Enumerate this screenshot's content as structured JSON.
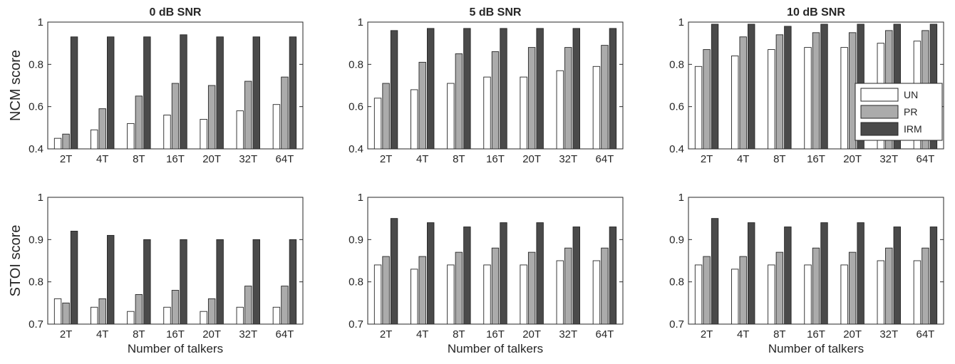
{
  "legend": {
    "entries": [
      {
        "label": "UN",
        "color": "#ffffff"
      },
      {
        "label": "PR",
        "color": "#ababab"
      },
      {
        "label": "IRM",
        "color": "#4a4a4a"
      }
    ],
    "placement": "right of top-right panel"
  },
  "chart_data": [
    {
      "type": "bar",
      "row": 0,
      "col": 0,
      "title": "0 dB SNR",
      "ylabel": "NCM score",
      "xlabel": "",
      "categories": [
        "2T",
        "4T",
        "8T",
        "16T",
        "20T",
        "32T",
        "64T"
      ],
      "ylim": [
        0.4,
        1.0
      ],
      "yticks": [
        "0.4",
        "0.6",
        "0.8",
        "1"
      ],
      "series": [
        {
          "name": "UN",
          "values": [
            0.45,
            0.49,
            0.52,
            0.56,
            0.54,
            0.58,
            0.61
          ]
        },
        {
          "name": "PR",
          "values": [
            0.47,
            0.59,
            0.65,
            0.71,
            0.7,
            0.72,
            0.74
          ]
        },
        {
          "name": "IRM",
          "values": [
            0.93,
            0.93,
            0.93,
            0.94,
            0.93,
            0.93,
            0.93
          ]
        }
      ]
    },
    {
      "type": "bar",
      "row": 0,
      "col": 1,
      "title": "5 dB SNR",
      "ylabel": "",
      "xlabel": "",
      "categories": [
        "2T",
        "4T",
        "8T",
        "16T",
        "20T",
        "32T",
        "64T"
      ],
      "ylim": [
        0.4,
        1.0
      ],
      "yticks": [
        "0.4",
        "0.6",
        "0.8",
        "1"
      ],
      "series": [
        {
          "name": "UN",
          "values": [
            0.64,
            0.68,
            0.71,
            0.74,
            0.74,
            0.77,
            0.79
          ]
        },
        {
          "name": "PR",
          "values": [
            0.71,
            0.81,
            0.85,
            0.86,
            0.88,
            0.88,
            0.89
          ]
        },
        {
          "name": "IRM",
          "values": [
            0.96,
            0.97,
            0.97,
            0.97,
            0.97,
            0.97,
            0.97
          ]
        }
      ]
    },
    {
      "type": "bar",
      "row": 0,
      "col": 2,
      "title": "10 dB SNR",
      "ylabel": "",
      "xlabel": "",
      "categories": [
        "2T",
        "4T",
        "8T",
        "16T",
        "20T",
        "32T",
        "64T"
      ],
      "ylim": [
        0.4,
        1.0
      ],
      "yticks": [
        "0.4",
        "0.6",
        "0.8",
        "1"
      ],
      "series": [
        {
          "name": "UN",
          "values": [
            0.79,
            0.84,
            0.87,
            0.88,
            0.88,
            0.9,
            0.91
          ]
        },
        {
          "name": "PR",
          "values": [
            0.87,
            0.93,
            0.94,
            0.95,
            0.95,
            0.96,
            0.96
          ]
        },
        {
          "name": "IRM",
          "values": [
            0.99,
            0.99,
            0.98,
            0.99,
            0.99,
            0.99,
            0.99
          ]
        }
      ]
    },
    {
      "type": "bar",
      "row": 1,
      "col": 0,
      "title": "",
      "ylabel": "STOI score",
      "xlabel": "Number of talkers",
      "categories": [
        "2T",
        "4T",
        "8T",
        "16T",
        "20T",
        "32T",
        "64T"
      ],
      "ylim": [
        0.7,
        1.0
      ],
      "yticks": [
        "0.7",
        "0.8",
        "0.9",
        "1"
      ],
      "series": [
        {
          "name": "UN",
          "values": [
            0.76,
            0.74,
            0.73,
            0.74,
            0.73,
            0.74,
            0.74
          ]
        },
        {
          "name": "PR",
          "values": [
            0.75,
            0.76,
            0.77,
            0.78,
            0.76,
            0.79,
            0.79
          ]
        },
        {
          "name": "IRM",
          "values": [
            0.92,
            0.91,
            0.9,
            0.9,
            0.9,
            0.9,
            0.9
          ]
        }
      ]
    },
    {
      "type": "bar",
      "row": 1,
      "col": 1,
      "title": "",
      "ylabel": "",
      "xlabel": "Number of talkers",
      "categories": [
        "2T",
        "4T",
        "8T",
        "16T",
        "20T",
        "32T",
        "64T"
      ],
      "ylim": [
        0.7,
        1.0
      ],
      "yticks": [
        "0.7",
        "0.8",
        "0.9",
        "1"
      ],
      "series": [
        {
          "name": "UN",
          "values": [
            0.84,
            0.83,
            0.84,
            0.84,
            0.84,
            0.85,
            0.85
          ]
        },
        {
          "name": "PR",
          "values": [
            0.86,
            0.86,
            0.87,
            0.88,
            0.87,
            0.88,
            0.88
          ]
        },
        {
          "name": "IRM",
          "values": [
            0.95,
            0.94,
            0.93,
            0.94,
            0.94,
            0.93,
            0.93
          ]
        }
      ]
    },
    {
      "type": "bar",
      "row": 1,
      "col": 2,
      "title": "",
      "ylabel": "",
      "xlabel": "Number of talkers",
      "categories": [
        "2T",
        "4T",
        "8T",
        "16T",
        "20T",
        "32T",
        "64T"
      ],
      "ylim": [
        0.7,
        1.0
      ],
      "yticks": [
        "0.7",
        "0.8",
        "0.9",
        "1"
      ],
      "series": [
        {
          "name": "UN",
          "values": [
            0.84,
            0.83,
            0.84,
            0.84,
            0.84,
            0.85,
            0.85
          ]
        },
        {
          "name": "PR",
          "values": [
            0.86,
            0.86,
            0.87,
            0.88,
            0.87,
            0.88,
            0.88
          ]
        },
        {
          "name": "IRM",
          "values": [
            0.95,
            0.94,
            0.93,
            0.94,
            0.94,
            0.93,
            0.93
          ]
        }
      ]
    }
  ]
}
